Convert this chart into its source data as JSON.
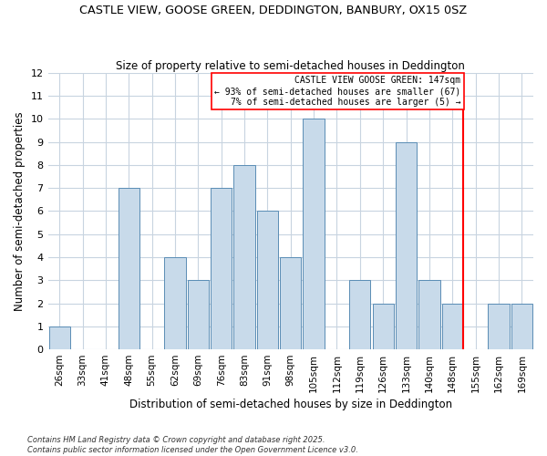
{
  "title": "CASTLE VIEW, GOOSE GREEN, DEDDINGTON, BANBURY, OX15 0SZ",
  "subtitle": "Size of property relative to semi-detached houses in Deddington",
  "xlabel": "Distribution of semi-detached houses by size in Deddington",
  "ylabel": "Number of semi-detached properties",
  "bin_labels": [
    "26sqm",
    "33sqm",
    "41sqm",
    "48sqm",
    "55sqm",
    "62sqm",
    "69sqm",
    "76sqm",
    "83sqm",
    "91sqm",
    "98sqm",
    "105sqm",
    "112sqm",
    "119sqm",
    "126sqm",
    "133sqm",
    "140sqm",
    "148sqm",
    "155sqm",
    "162sqm",
    "169sqm"
  ],
  "bar_values": [
    1,
    0,
    0,
    7,
    0,
    4,
    3,
    7,
    8,
    6,
    4,
    10,
    0,
    3,
    2,
    9,
    3,
    2,
    0,
    2,
    2
  ],
  "bar_color": "#c8daea",
  "bar_edge_color": "#5a8db5",
  "grid_color": "#c8d4e0",
  "background_color": "#ffffff",
  "property_line_bin": 17,
  "property_line_label": "CASTLE VIEW GOOSE GREEN: 147sqm",
  "annotation_line1": "← 93% of semi-detached houses are smaller (67)",
  "annotation_line2": "7% of semi-detached houses are larger (5) →",
  "ylim": [
    0,
    12
  ],
  "yticks": [
    0,
    1,
    2,
    3,
    4,
    5,
    6,
    7,
    8,
    9,
    10,
    11,
    12
  ],
  "footnote1": "Contains HM Land Registry data © Crown copyright and database right 2025.",
  "footnote2": "Contains public sector information licensed under the Open Government Licence v3.0."
}
